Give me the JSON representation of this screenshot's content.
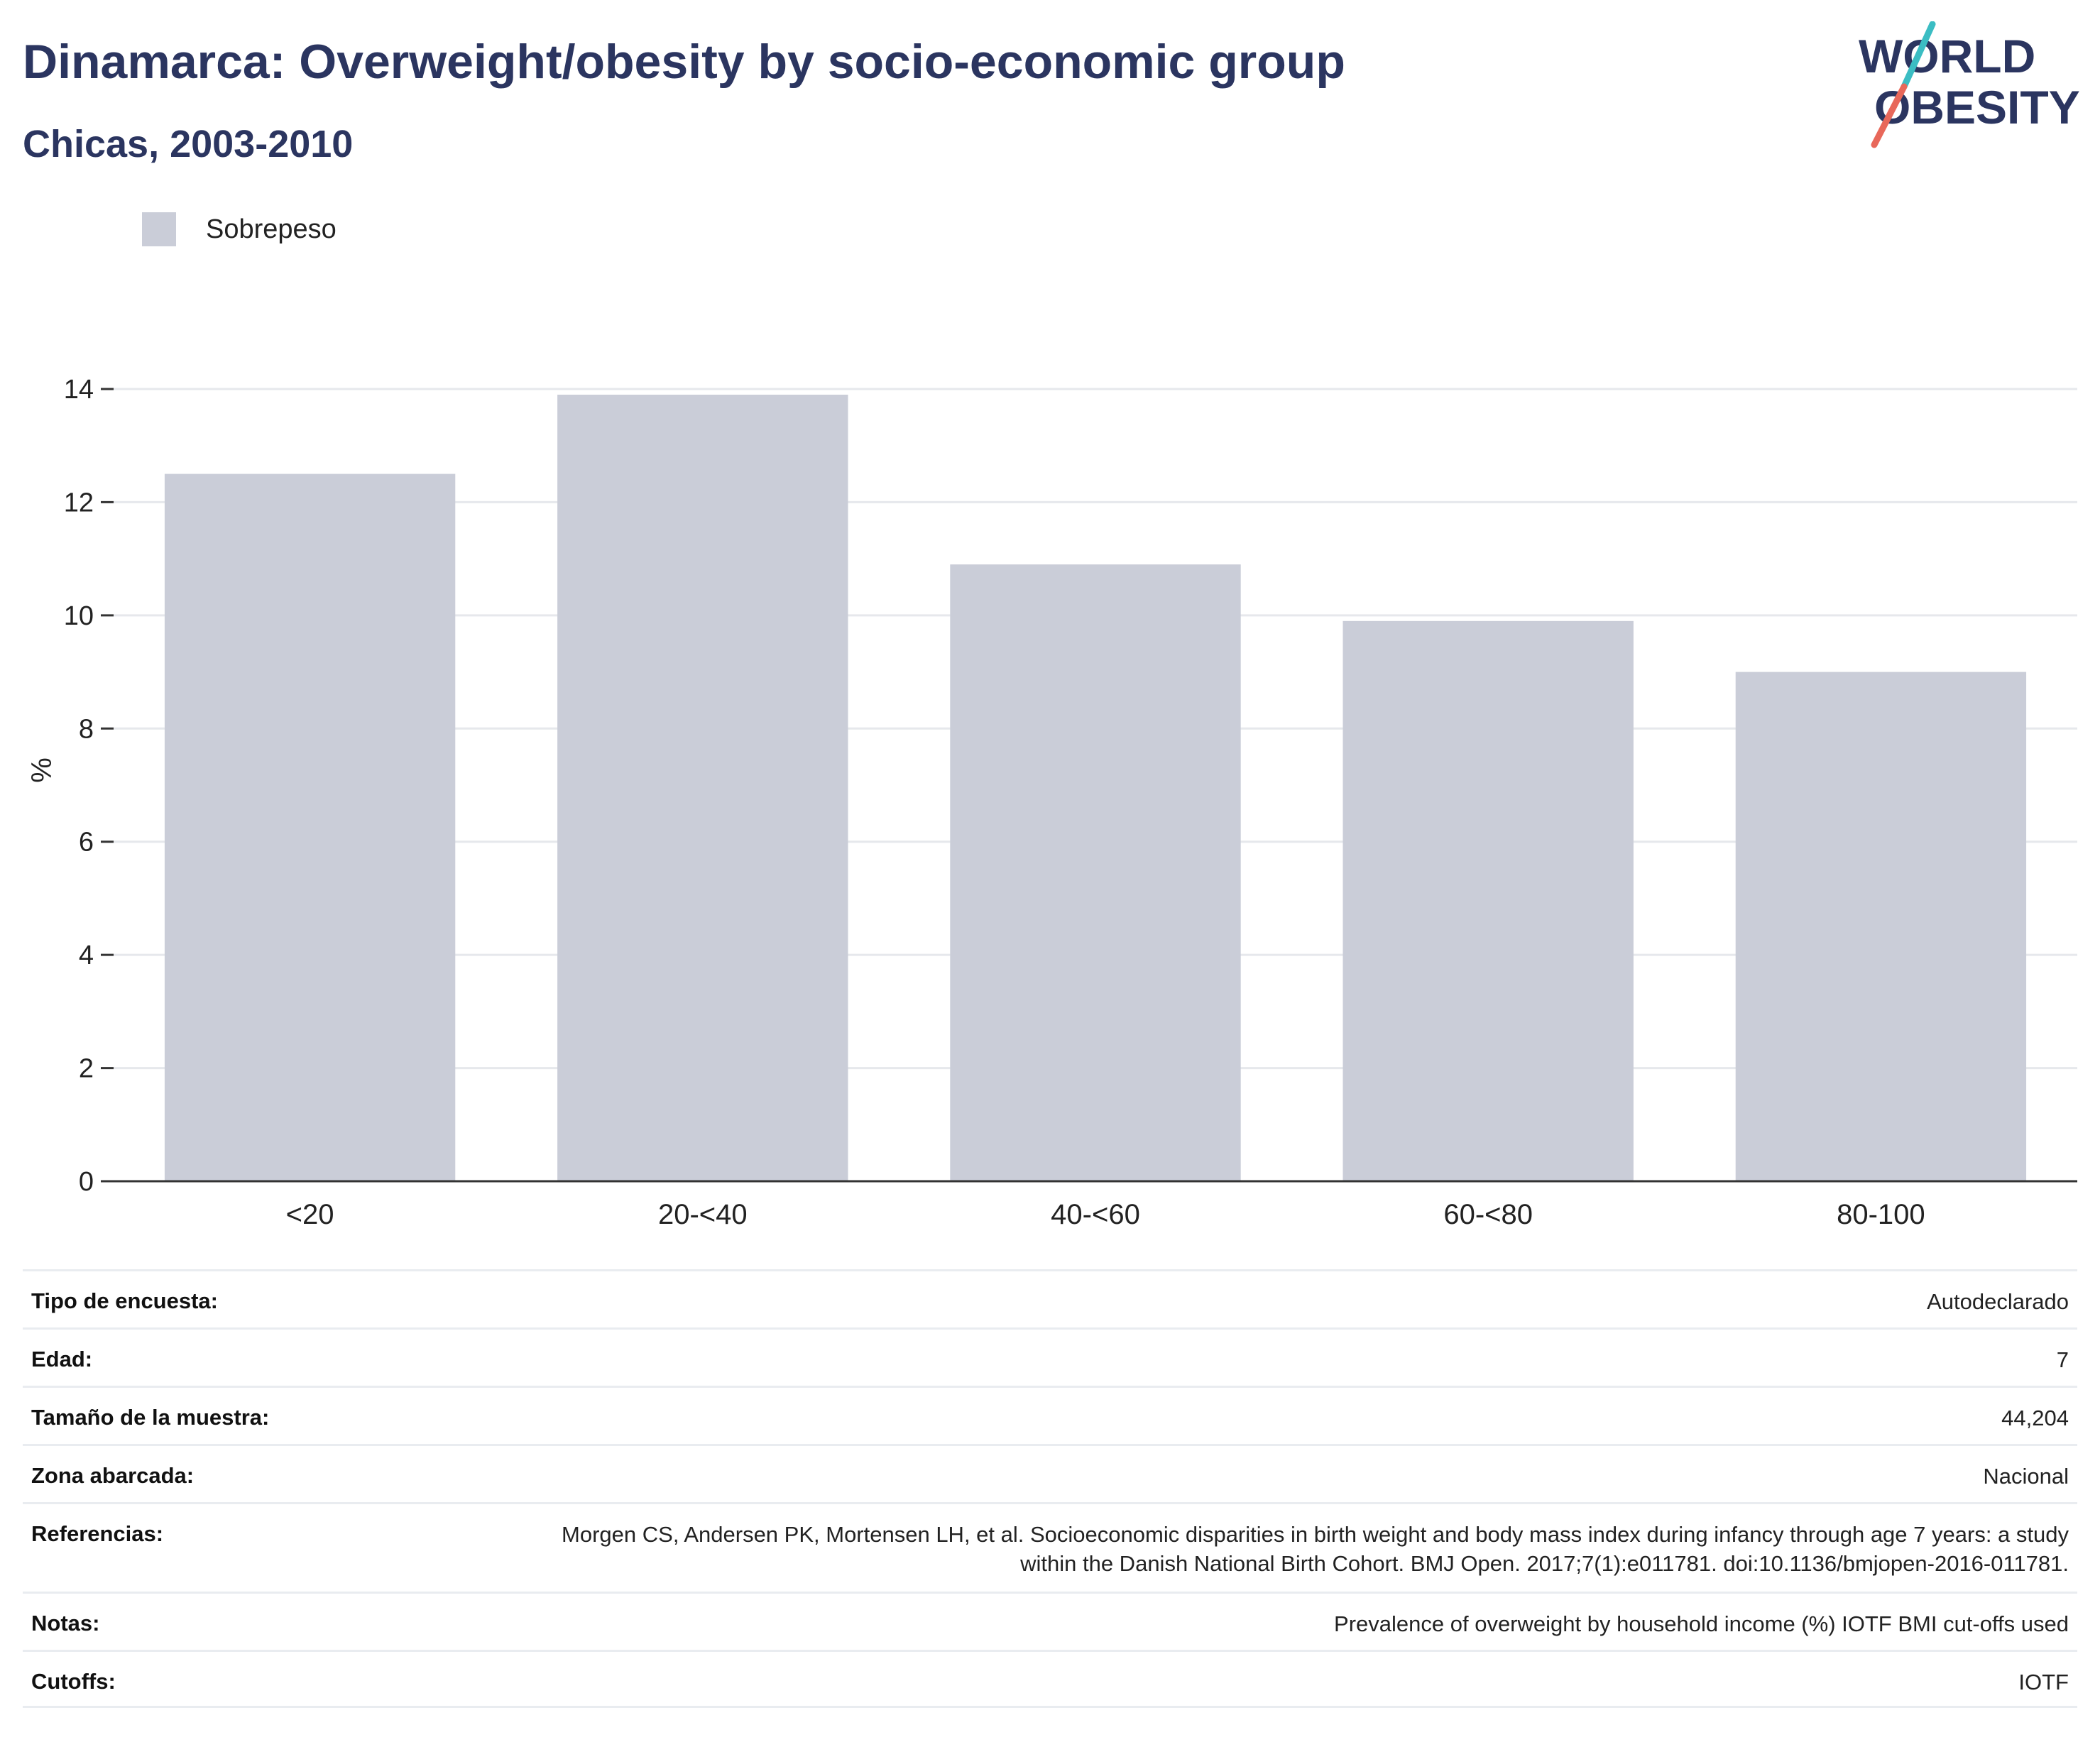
{
  "header": {
    "title": "Dinamarca: Overweight/obesity by socio-economic group",
    "subtitle": "Chicas, 2003-2010"
  },
  "logo": {
    "line1": "WORLD",
    "line2": "OBESITY"
  },
  "legend": {
    "label": "Sobrepeso"
  },
  "colors": {
    "bar": "#cacdd8",
    "title": "#2b3560",
    "logo_text": "#2b3560",
    "logo_slash_top": "#3bbdc3",
    "logo_slash_bottom": "#e8685a",
    "grid": "#e6e8ec",
    "axis": "#333333"
  },
  "chart_data": {
    "type": "bar",
    "categories": [
      "<20",
      "20-<40",
      "40-<60",
      "60-<80",
      "80-100"
    ],
    "series": [
      {
        "name": "Sobrepeso",
        "values": [
          12.5,
          13.9,
          10.9,
          9.9,
          9.0
        ]
      }
    ],
    "ylabel": "%",
    "ylim": [
      0,
      14
    ],
    "yticks": [
      0,
      2,
      4,
      6,
      8,
      10,
      12,
      14
    ],
    "grid": true,
    "legend_position": "top-left"
  },
  "info": [
    {
      "label": "Tipo de encuesta:",
      "value": "Autodeclarado"
    },
    {
      "label": "Edad:",
      "value": "7"
    },
    {
      "label": "Tamaño de la muestra:",
      "value": "44,204"
    },
    {
      "label": "Zona abarcada:",
      "value": "Nacional"
    },
    {
      "label": "Referencias:",
      "value": "Morgen CS, Andersen PK, Mortensen LH, et al. Socioeconomic disparities in birth weight and body mass index during infancy through age 7 years: a study within the Danish National Birth Cohort. BMJ Open. 2017;7(1):e011781. doi:10.1136/bmjopen-2016-011781."
    },
    {
      "label": "Notas:",
      "value": "Prevalence of overweight by household income (%) IOTF BMI cut-offs used"
    },
    {
      "label": "Cutoffs:",
      "value": "IOTF"
    }
  ]
}
